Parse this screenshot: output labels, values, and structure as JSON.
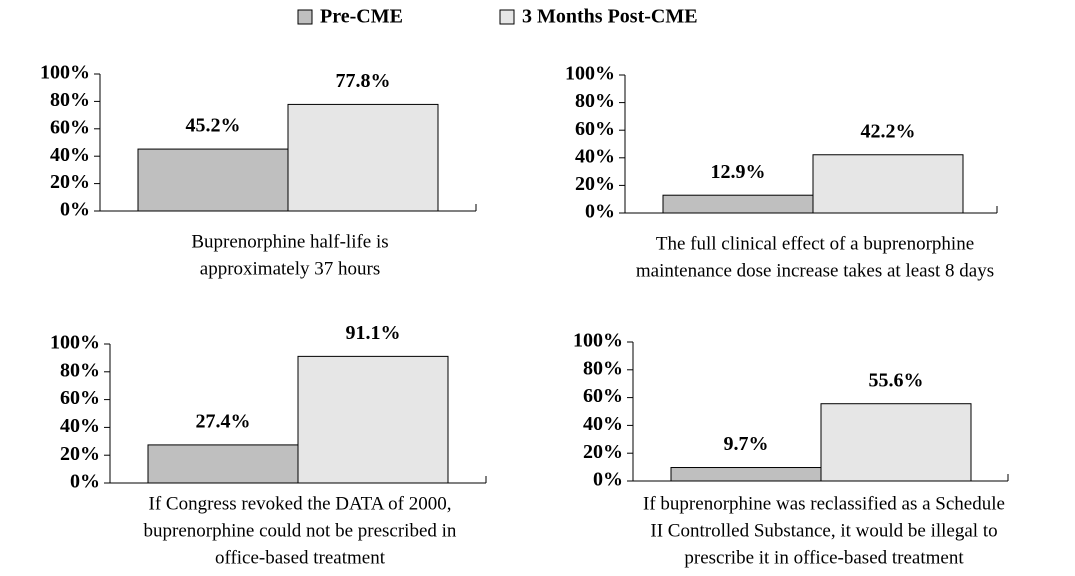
{
  "legend": [
    {
      "name": "Pre-CME",
      "color": "#bfbfbf"
    },
    {
      "name": "3 Months Post-CME",
      "color": "#e6e6e6"
    }
  ],
  "chart_data": [
    {
      "type": "bar",
      "xlabel": [
        "Buprenorphine half-life is",
        "approximately 37 hours"
      ],
      "ylim": [
        0,
        100
      ],
      "yticks": [
        {
          "value": 0,
          "label": "0%"
        },
        {
          "value": 20,
          "label": "20%"
        },
        {
          "value": 40,
          "label": "40%"
        },
        {
          "value": 60,
          "label": "60%"
        },
        {
          "value": 80,
          "label": "80%"
        },
        {
          "value": 100,
          "label": "100%"
        }
      ],
      "series": [
        {
          "color": "#bfbfbf",
          "values": [
            45.2
          ],
          "value_labels": [
            "45.2%"
          ]
        },
        {
          "color": "#e6e6e6",
          "values": [
            77.8
          ],
          "value_labels": [
            "77.8%"
          ]
        }
      ]
    },
    {
      "type": "bar",
      "xlabel": [
        "The full clinical effect of a buprenorphine",
        "maintenance dose increase takes at least 8 days"
      ],
      "ylim": [
        0,
        100
      ],
      "yticks": [
        {
          "value": 0,
          "label": "0%"
        },
        {
          "value": 20,
          "label": "20%"
        },
        {
          "value": 40,
          "label": "40%"
        },
        {
          "value": 60,
          "label": "60%"
        },
        {
          "value": 80,
          "label": "80%"
        },
        {
          "value": 100,
          "label": "100%"
        }
      ],
      "series": [
        {
          "color": "#bfbfbf",
          "values": [
            12.9
          ],
          "value_labels": [
            "12.9%"
          ]
        },
        {
          "color": "#e6e6e6",
          "values": [
            42.2
          ],
          "value_labels": [
            "42.2%"
          ]
        }
      ]
    },
    {
      "type": "bar",
      "xlabel": [
        "If Congress revoked the DATA of 2000,",
        "buprenorphine could not be prescribed in",
        "office-based treatment"
      ],
      "ylim": [
        0,
        100
      ],
      "yticks": [
        {
          "value": 0,
          "label": "0%"
        },
        {
          "value": 20,
          "label": "20%"
        },
        {
          "value": 40,
          "label": "40%"
        },
        {
          "value": 60,
          "label": "60%"
        },
        {
          "value": 80,
          "label": "80%"
        },
        {
          "value": 100,
          "label": "100%"
        }
      ],
      "series": [
        {
          "color": "#bfbfbf",
          "values": [
            27.4
          ],
          "value_labels": [
            "27.4%"
          ]
        },
        {
          "color": "#e6e6e6",
          "values": [
            91.1
          ],
          "value_labels": [
            "91.1%"
          ]
        }
      ]
    },
    {
      "type": "bar",
      "xlabel": [
        "If buprenorphine was reclassified as a Schedule",
        "II Controlled Substance, it would be illegal to",
        "prescribe it in office-based treatment"
      ],
      "ylim": [
        0,
        100
      ],
      "yticks": [
        {
          "value": 0,
          "label": "0%"
        },
        {
          "value": 20,
          "label": "20%"
        },
        {
          "value": 40,
          "label": "40%"
        },
        {
          "value": 60,
          "label": "60%"
        },
        {
          "value": 80,
          "label": "80%"
        },
        {
          "value": 100,
          "label": "100%"
        }
      ],
      "series": [
        {
          "color": "#bfbfbf",
          "values": [
            9.7
          ],
          "value_labels": [
            "9.7%"
          ]
        },
        {
          "color": "#e6e6e6",
          "values": [
            55.6
          ],
          "value_labels": [
            "55.6%"
          ]
        }
      ]
    }
  ]
}
